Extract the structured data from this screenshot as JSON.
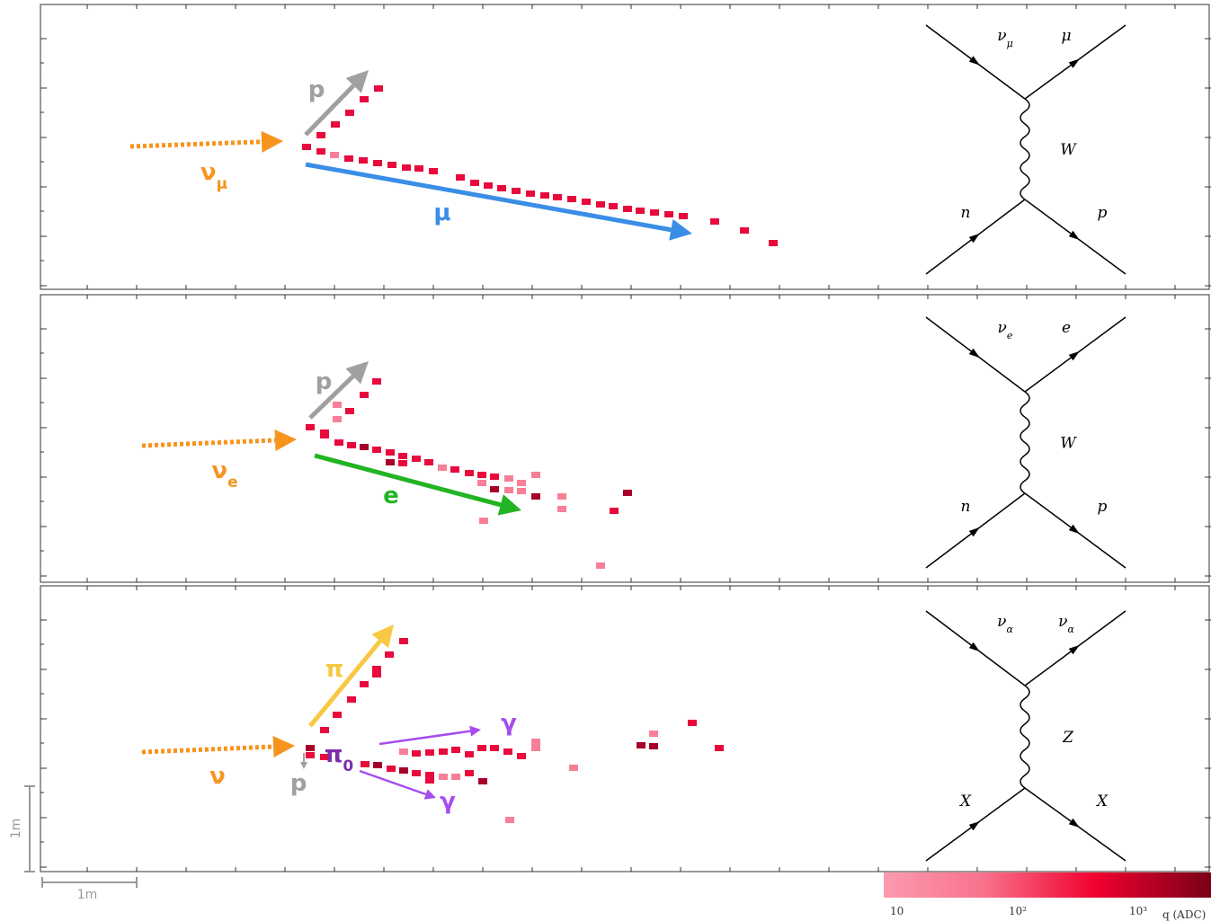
{
  "panels": [
    {
      "tracks": {
        "neutrino": {
          "symbol": "ν",
          "sub": "μ"
        },
        "proton": "p",
        "lepton": "μ"
      },
      "feynman": {
        "top_left": {
          "symbol": "ν",
          "sub": "μ"
        },
        "top_right": "μ",
        "boson": "W",
        "bottom_left": "n",
        "bottom_right": "p"
      }
    },
    {
      "tracks": {
        "neutrino": {
          "symbol": "ν",
          "sub": "e"
        },
        "proton": "p",
        "lepton": "e"
      },
      "feynman": {
        "top_left": {
          "symbol": "ν",
          "sub": "e"
        },
        "top_right": "e",
        "boson": "W",
        "bottom_left": "n",
        "bottom_right": "p"
      }
    },
    {
      "tracks": {
        "neutrino": "ν",
        "pion": "π",
        "proton": "p",
        "pi0": {
          "symbol": "π",
          "sub": "0"
        },
        "photon_1": "γ",
        "photon_2": "γ"
      },
      "feynman": {
        "top_left": {
          "symbol": "ν",
          "sub": "α"
        },
        "top_right": {
          "symbol": "ν",
          "sub": "α"
        },
        "boson": "Z",
        "bottom_left": "X",
        "bottom_right": "X"
      }
    }
  ],
  "scale": {
    "vertical": "1m",
    "horizontal": "1m"
  },
  "colorbar": {
    "ticks": [
      "10",
      "10²",
      "10³"
    ],
    "label": "q (ADC)"
  }
}
